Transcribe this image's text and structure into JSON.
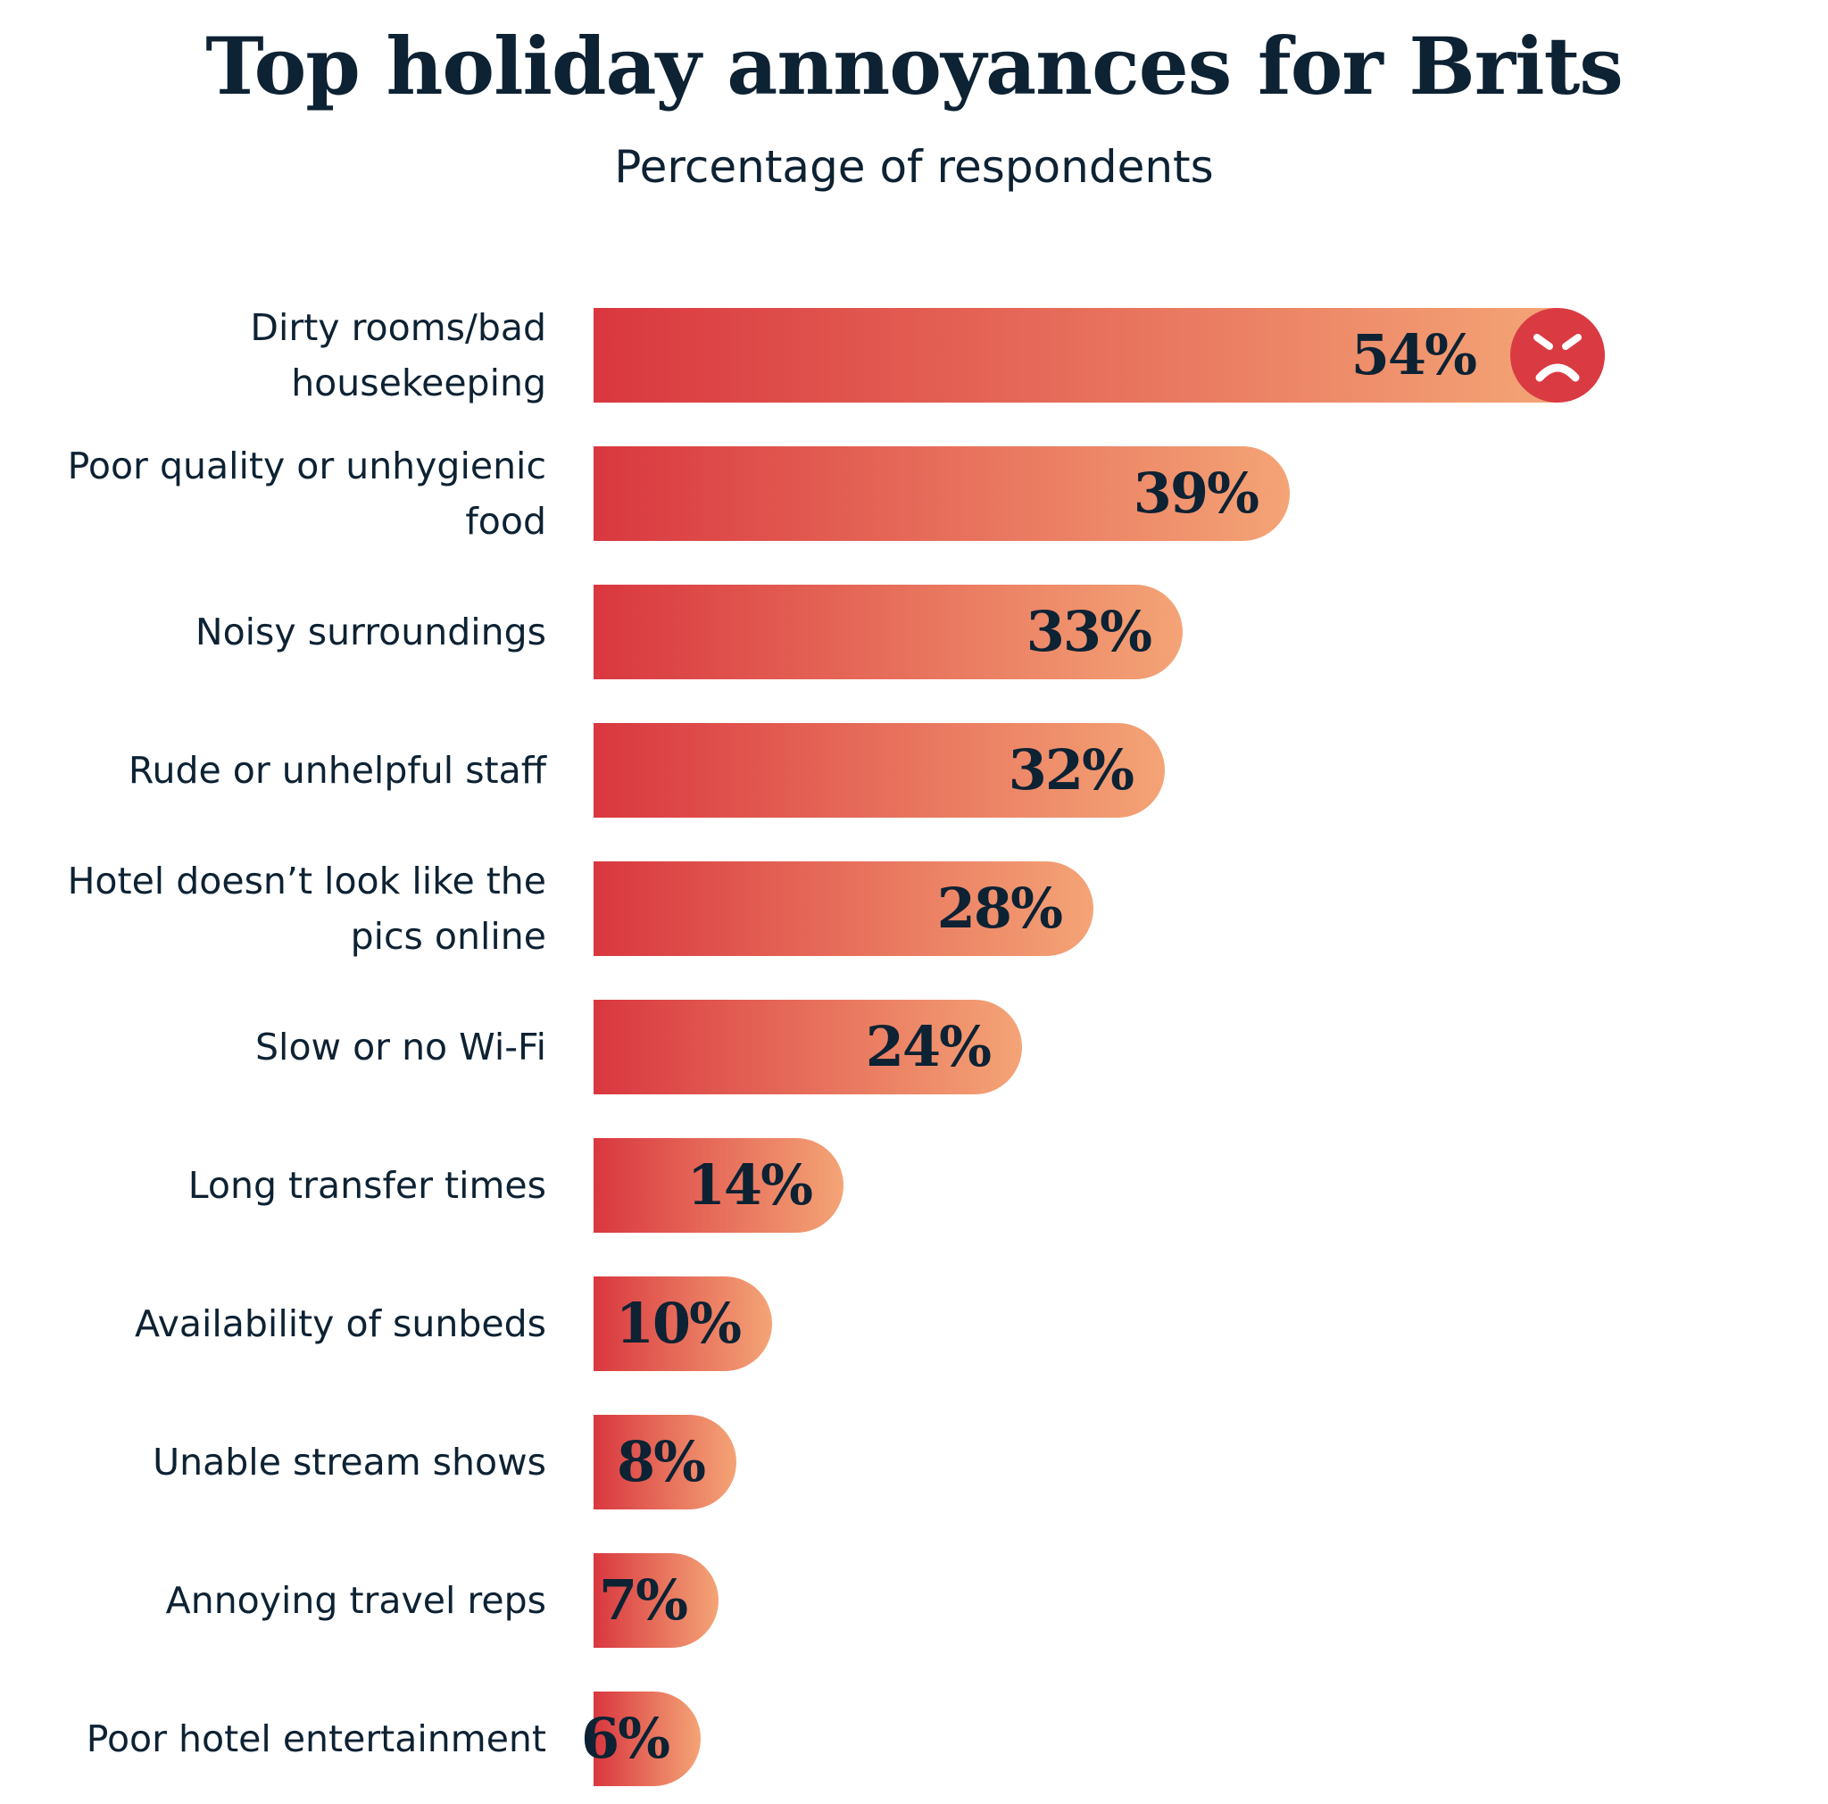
{
  "colors": {
    "gradient_start": "#d9373f",
    "gradient_end": "#f4a476",
    "text": "#0d2233",
    "icon": "#da3a42"
  },
  "chart_data": {
    "type": "bar",
    "orientation": "horizontal",
    "title": "Top holiday annoyances for Brits",
    "subtitle": "Percentage of respondents",
    "categories": [
      "Dirty rooms/bad housekeeping",
      "Poor quality or unhygienic food",
      "Noisy surroundings",
      "Rude or unhelpful staff",
      "Hotel doesn’t look like the pics online",
      "Slow or no Wi-Fi",
      "Long transfer times",
      "Availability of sunbeds",
      "Unable stream shows",
      "Annoying travel reps",
      "Poor hotel entertainment"
    ],
    "values": [
      54,
      39,
      33,
      32,
      28,
      24,
      14,
      10,
      8,
      7,
      6
    ],
    "value_labels": [
      "54%",
      "39%",
      "33%",
      "32%",
      "28%",
      "24%",
      "14%",
      "10%",
      "8%",
      "7%",
      "6%"
    ],
    "annotations": [
      {
        "category": "Dirty rooms/bad housekeeping",
        "icon": "angry-face-icon"
      }
    ],
    "grid": false,
    "legend": "none"
  }
}
